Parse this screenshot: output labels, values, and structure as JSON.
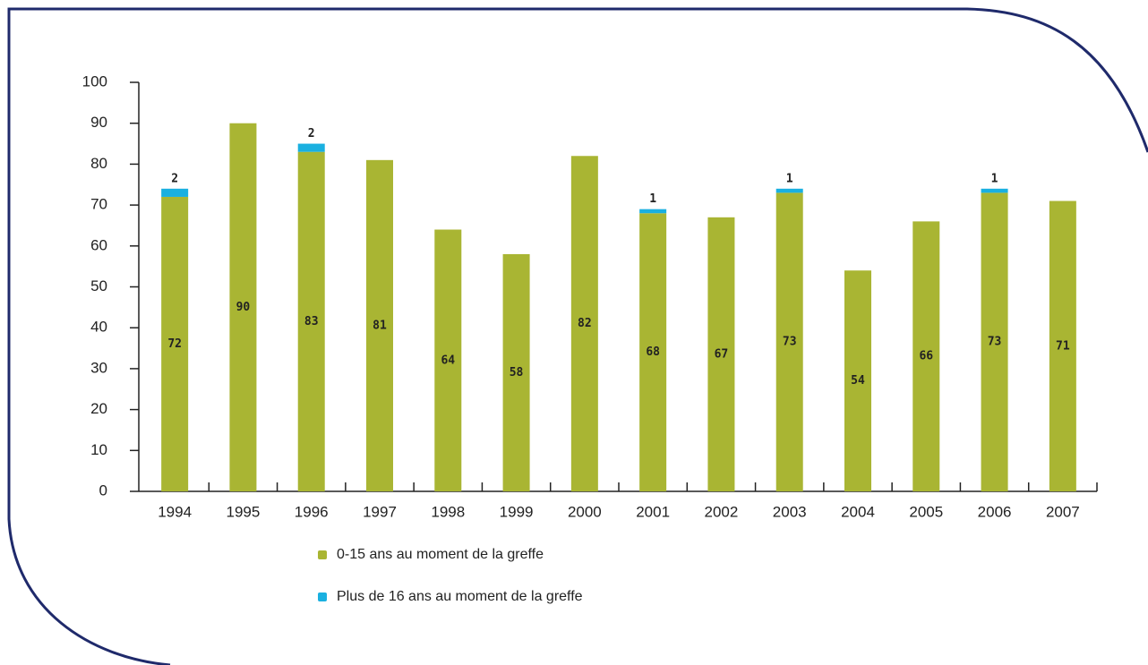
{
  "chart_data": {
    "type": "bar",
    "stacked": true,
    "categories": [
      "1994",
      "1995",
      "1996",
      "1997",
      "1998",
      "1999",
      "2000",
      "2001",
      "2002",
      "2003",
      "2004",
      "2005",
      "2006",
      "2007"
    ],
    "series": [
      {
        "name": "0-15 ans au moment de la greffe",
        "color": "#a9b533",
        "values": [
          72,
          90,
          83,
          81,
          64,
          58,
          82,
          68,
          67,
          73,
          54,
          66,
          73,
          71
        ]
      },
      {
        "name": "Plus de 16 ans au moment de la greffe",
        "color": "#1ab0e0",
        "values": [
          2,
          null,
          2,
          null,
          null,
          null,
          null,
          1,
          null,
          1,
          null,
          null,
          1,
          null
        ]
      }
    ],
    "ylim": [
      0,
      100
    ],
    "yticks": [
      0,
      10,
      20,
      30,
      40,
      50,
      60,
      70,
      80,
      90,
      100
    ],
    "grid": false
  }
}
